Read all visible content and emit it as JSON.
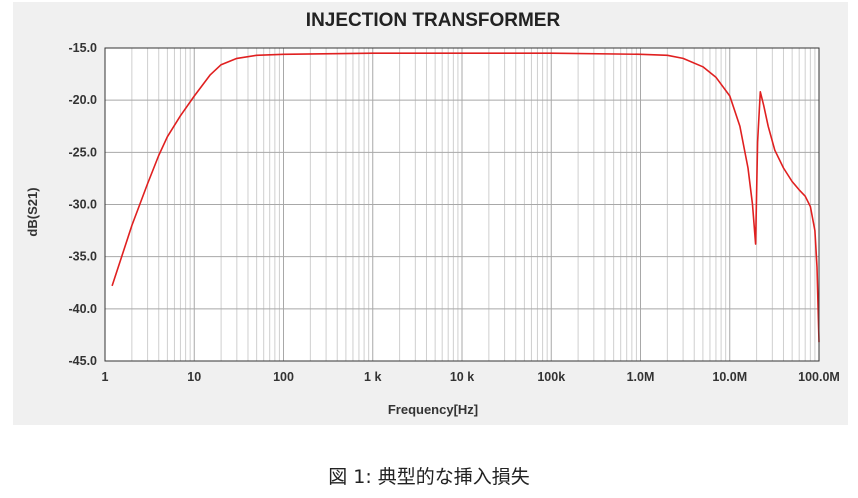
{
  "chart_data": {
    "type": "line",
    "title": "INJECTION TRANSFORMER",
    "xlabel": "Frequency[Hz]",
    "ylabel": "dB(S21)",
    "x_scale": "log",
    "xlim": [
      1,
      100000000
    ],
    "ylim": [
      -45,
      -15
    ],
    "grid": true,
    "x_ticks": [
      {
        "value": 1,
        "label": "1"
      },
      {
        "value": 10,
        "label": "10"
      },
      {
        "value": 100,
        "label": "100"
      },
      {
        "value": 1000,
        "label": "1 k"
      },
      {
        "value": 10000,
        "label": "10 k"
      },
      {
        "value": 100000,
        "label": "100k"
      },
      {
        "value": 1000000,
        "label": "1.0M"
      },
      {
        "value": 10000000,
        "label": "10.0M"
      },
      {
        "value": 100000000,
        "label": "100.0M"
      }
    ],
    "y_ticks": [
      {
        "value": -15,
        "label": "-15.0"
      },
      {
        "value": -20,
        "label": "-20.0"
      },
      {
        "value": -25,
        "label": "-25.0"
      },
      {
        "value": -30,
        "label": "-30.0"
      },
      {
        "value": -35,
        "label": "-35.0"
      },
      {
        "value": -40,
        "label": "-40.0"
      },
      {
        "value": -45,
        "label": "-45.0"
      }
    ],
    "series": [
      {
        "color": "#e02020",
        "x": [
          1.2,
          2,
          3,
          4,
          5,
          7,
          10,
          15,
          20,
          30,
          50,
          100,
          1000,
          10000,
          100000,
          1000000,
          2000000,
          3000000,
          5000000,
          7000000,
          10000000,
          13000000,
          16000000,
          18000000,
          19500000,
          20500000,
          22000000,
          24000000,
          27000000,
          32000000,
          40000000,
          50000000,
          60000000,
          70000000,
          80000000,
          90000000,
          95000000,
          100000000
        ],
        "y": [
          -37.8,
          -32.0,
          -28.0,
          -25.3,
          -23.5,
          -21.5,
          -19.6,
          -17.6,
          -16.6,
          -16.0,
          -15.7,
          -15.6,
          -15.5,
          -15.5,
          -15.5,
          -15.6,
          -15.7,
          -16.0,
          -16.8,
          -17.8,
          -19.6,
          -22.5,
          -26.5,
          -30.0,
          -33.8,
          -24.0,
          -19.2,
          -20.5,
          -22.5,
          -24.8,
          -26.5,
          -27.8,
          -28.6,
          -29.2,
          -30.2,
          -32.5,
          -36.0,
          -43.2
        ]
      }
    ]
  },
  "caption": "図 1: 典型的な挿入損失"
}
